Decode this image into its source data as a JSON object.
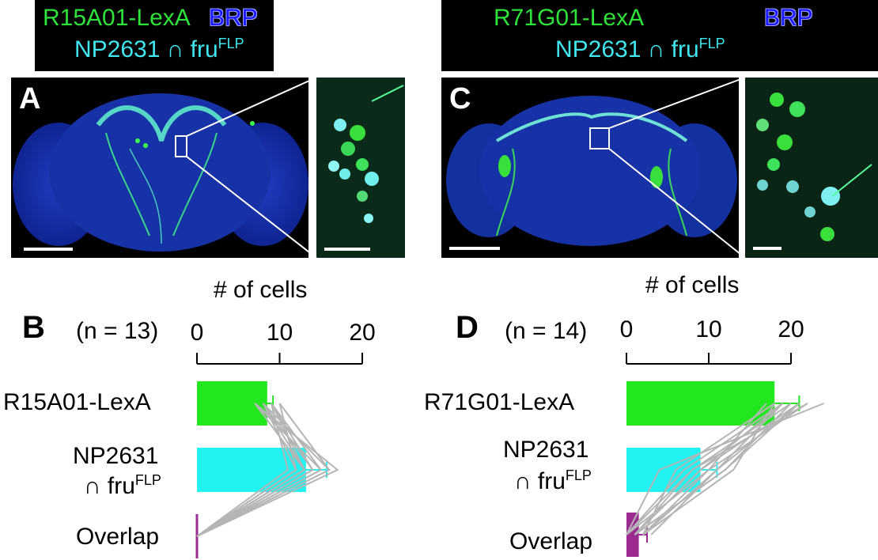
{
  "panels": {
    "left_header": {
      "driver": "R15A01-LexA",
      "stain": "BRP",
      "intersect_label": "NP2631 ∩ fru",
      "intersect_sup": "FLP"
    },
    "right_header": {
      "driver": "R71G01-LexA",
      "stain": "BRP",
      "intersect_label": "NP2631 ∩ fru",
      "intersect_sup": "FLP"
    },
    "panel_A_label": "A",
    "panel_C_label": "C"
  },
  "chart_data": [
    {
      "type": "bar",
      "panel_label": "B",
      "n_label": "(n = 13)",
      "xlabel": "# of cells",
      "x_ticks": [
        "0",
        "10",
        "20"
      ],
      "xlim": [
        0,
        20
      ],
      "categories": [
        "R15A01-LexA",
        "NP2631 ∩ fruFLP",
        "Overlap"
      ],
      "category_labels": [
        [
          "R15A01-LexA"
        ],
        [
          "NP2631",
          "∩ fru",
          "FLP"
        ],
        [
          "Overlap"
        ]
      ],
      "values": [
        8.5,
        13.2,
        0
      ],
      "errors": [
        0.7,
        2.5,
        0
      ],
      "colors": [
        "#22e61e",
        "#22f2f2",
        "#9b2b91"
      ],
      "paired_lines": [
        [
          7,
          17,
          0
        ],
        [
          8,
          16,
          0
        ],
        [
          9,
          15,
          0
        ],
        [
          8,
          14,
          0
        ],
        [
          7,
          13,
          0
        ],
        [
          10,
          12,
          0
        ],
        [
          9,
          11,
          0
        ],
        [
          8,
          13,
          0
        ],
        [
          7,
          15,
          0
        ],
        [
          9,
          14,
          0
        ],
        [
          8,
          12,
          0
        ],
        [
          10,
          16,
          0
        ],
        [
          9,
          13,
          0
        ]
      ]
    },
    {
      "type": "bar",
      "panel_label": "D",
      "n_label": "(n = 14)",
      "xlabel": "# of cells",
      "x_ticks": [
        "0",
        "10",
        "20"
      ],
      "xlim": [
        0,
        20
      ],
      "categories": [
        "R71G01-LexA",
        "NP2631 ∩ fruFLP",
        "Overlap"
      ],
      "category_labels": [
        [
          "R71G01-LexA"
        ],
        [
          "NP2631",
          "∩ fru",
          "FLP"
        ],
        [
          "Overlap"
        ]
      ],
      "values": [
        18,
        9,
        1.5
      ],
      "errors": [
        3,
        2,
        1
      ],
      "colors": [
        "#22e61e",
        "#22f2f2",
        "#9b2b91"
      ],
      "paired_lines": [
        [
          24,
          4,
          0
        ],
        [
          21,
          12,
          1
        ],
        [
          19,
          11,
          2
        ],
        [
          22,
          10,
          0
        ],
        [
          20,
          8,
          1
        ],
        [
          18,
          13,
          2
        ],
        [
          21,
          9,
          1
        ],
        [
          19,
          7,
          0
        ],
        [
          17,
          10,
          2
        ],
        [
          20,
          12,
          1
        ],
        [
          22,
          8,
          0
        ],
        [
          18,
          6,
          2
        ],
        [
          19,
          9,
          1
        ],
        [
          21,
          11,
          3
        ]
      ]
    }
  ]
}
